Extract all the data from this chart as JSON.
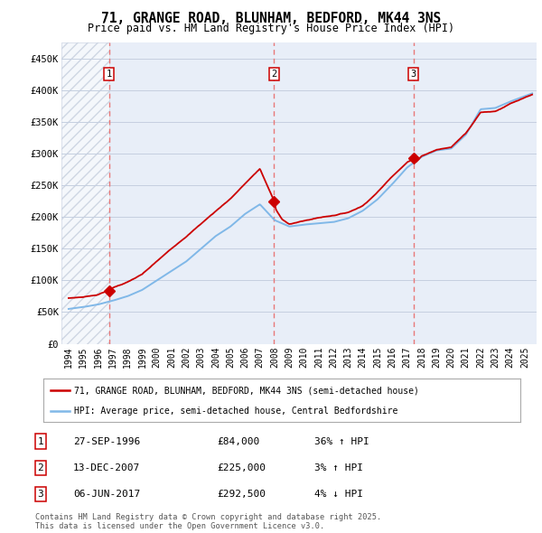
{
  "title": "71, GRANGE ROAD, BLUNHAM, BEDFORD, MK44 3NS",
  "subtitle": "Price paid vs. HM Land Registry's House Price Index (HPI)",
  "ylim": [
    0,
    475000
  ],
  "yticks": [
    0,
    50000,
    100000,
    150000,
    200000,
    250000,
    300000,
    350000,
    400000,
    450000
  ],
  "ytick_labels": [
    "£0",
    "£50K",
    "£100K",
    "£150K",
    "£200K",
    "£250K",
    "£300K",
    "£350K",
    "£400K",
    "£450K"
  ],
  "background_color": "#ffffff",
  "plot_bg_color": "#e8eef8",
  "grid_color": "#c5cfe0",
  "hpi_line_color": "#80b8e8",
  "price_line_color": "#cc0000",
  "sale_marker_color": "#cc0000",
  "dashed_line_color": "#e87878",
  "sale_points": [
    {
      "date": 1996.75,
      "price": 84000,
      "label": "1"
    },
    {
      "date": 2007.95,
      "price": 225000,
      "label": "2"
    },
    {
      "date": 2017.43,
      "price": 292500,
      "label": "3"
    }
  ],
  "table_rows": [
    {
      "num": "1",
      "date": "27-SEP-1996",
      "price": "£84,000",
      "hpi": "36% ↑ HPI"
    },
    {
      "num": "2",
      "date": "13-DEC-2007",
      "price": "£225,000",
      "hpi": "3% ↑ HPI"
    },
    {
      "num": "3",
      "date": "06-JUN-2017",
      "price": "£292,500",
      "hpi": "4% ↓ HPI"
    }
  ],
  "legend_entries": [
    "71, GRANGE ROAD, BLUNHAM, BEDFORD, MK44 3NS (semi-detached house)",
    "HPI: Average price, semi-detached house, Central Bedfordshire"
  ],
  "footer": "Contains HM Land Registry data © Crown copyright and database right 2025.\nThis data is licensed under the Open Government Licence v3.0.",
  "xlim": [
    1993.5,
    2025.8
  ],
  "xtick_years": [
    1994,
    1995,
    1996,
    1997,
    1998,
    1999,
    2000,
    2001,
    2002,
    2003,
    2004,
    2005,
    2006,
    2007,
    2008,
    2009,
    2010,
    2011,
    2012,
    2013,
    2014,
    2015,
    2016,
    2017,
    2018,
    2019,
    2020,
    2021,
    2022,
    2023,
    2024,
    2025
  ]
}
